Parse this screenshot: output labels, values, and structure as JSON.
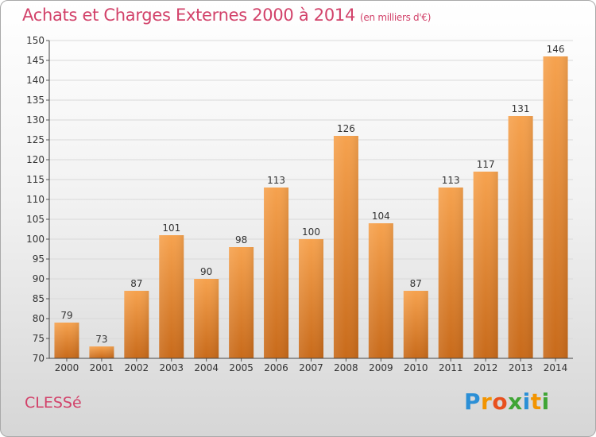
{
  "header": {
    "title": "Achats et Charges Externes 2000 à 2014",
    "subtitle": "(en milliers d'€)"
  },
  "footer": {
    "place": "CLESSé",
    "logo_letters": [
      {
        "char": "P",
        "color": "#2b8fd6"
      },
      {
        "char": "r",
        "color": "#f29400"
      },
      {
        "char": "o",
        "color": "#e8501e"
      },
      {
        "char": "x",
        "color": "#3fa535"
      },
      {
        "char": "i",
        "color": "#2b8fd6"
      },
      {
        "char": "t",
        "color": "#f29400"
      },
      {
        "char": "i",
        "color": "#3fa535"
      }
    ]
  },
  "colors": {
    "accent_text": "#d2426a",
    "bar_light": "#f6a24e",
    "bar_dark": "#c86a1a",
    "grid": "#d9d9d9"
  },
  "chart_data": {
    "type": "bar",
    "title": "Achats et Charges Externes 2000 à 2014",
    "subtitle": "(en milliers d'€)",
    "categories": [
      "2000",
      "2001",
      "2002",
      "2003",
      "2004",
      "2005",
      "2006",
      "2007",
      "2008",
      "2009",
      "2010",
      "2011",
      "2012",
      "2013",
      "2014"
    ],
    "values": [
      79,
      73,
      87,
      101,
      90,
      98,
      113,
      100,
      126,
      104,
      87,
      113,
      117,
      131,
      146
    ],
    "ylim": [
      70,
      150
    ],
    "yticks": [
      70,
      75,
      80,
      85,
      90,
      95,
      100,
      105,
      110,
      115,
      120,
      125,
      130,
      135,
      140,
      145,
      150
    ],
    "grid": true,
    "legend": "none"
  }
}
